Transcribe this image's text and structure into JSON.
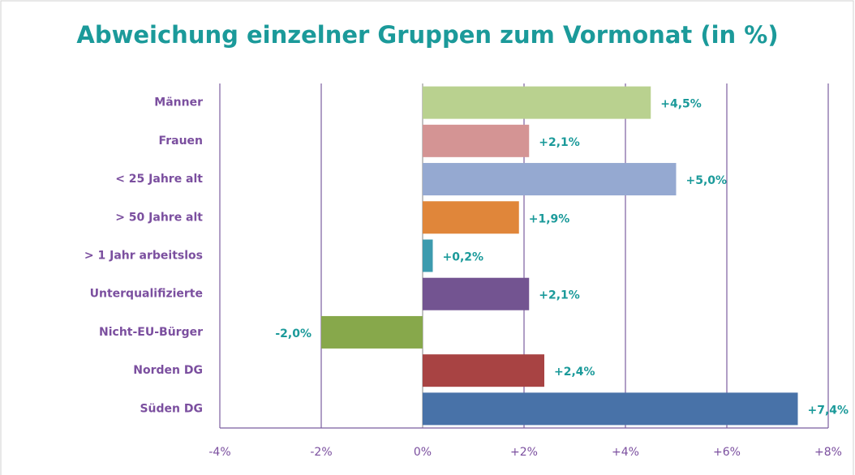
{
  "chart_data": {
    "type": "hbar",
    "title": "Abweichung einzelner Gruppen zum Vormonat (in %)",
    "categories": [
      "Männer",
      "Frauen",
      "< 25 Jahre alt",
      "> 50 Jahre alt",
      "> 1 Jahr arbeitslos",
      "Unterqualifizierte",
      "Nicht-EU-Bürger",
      "Norden DG",
      "Süden DG"
    ],
    "values": [
      4.5,
      2.1,
      5.0,
      1.9,
      0.2,
      2.1,
      -2.0,
      2.4,
      7.4
    ],
    "value_labels": [
      "+4,5%",
      "+2,1%",
      "+5,0%",
      "+1,9%",
      "+0,2%",
      "+2,1%",
      "-2,0%",
      "+2,4%",
      "+7,4%"
    ],
    "colors": [
      "#b9d18f",
      "#d49494",
      "#95a9d1",
      "#e0863a",
      "#3d9bae",
      "#735491",
      "#87a84b",
      "#a84343",
      "#4872a8"
    ],
    "xlim": [
      -4,
      8
    ],
    "xticks": [
      {
        "value": -4,
        "label": "-4%"
      },
      {
        "value": -2,
        "label": "-2%"
      },
      {
        "value": 0,
        "label": "0%"
      },
      {
        "value": 2,
        "label": "+2%"
      },
      {
        "value": 4,
        "label": "+4%"
      },
      {
        "value": 6,
        "label": "+6%"
      },
      {
        "value": 8,
        "label": "+8%"
      }
    ],
    "grid": true
  }
}
